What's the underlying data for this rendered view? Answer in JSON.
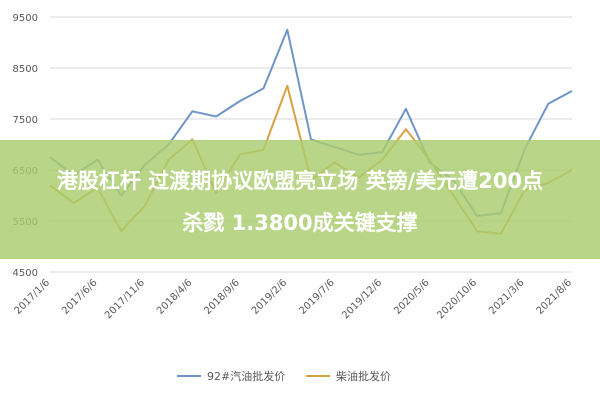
{
  "chart_data": {
    "type": "line",
    "title": "",
    "xlabel": "",
    "ylabel": "",
    "ylim": [
      4500,
      9500
    ],
    "y_ticks": [
      "9500",
      "8500",
      "7500",
      "6500",
      "5500",
      "4500"
    ],
    "x_ticks": [
      "2017/1/6",
      "2017/6/6",
      "2017/11/6",
      "2018/4/6",
      "2018/9/6",
      "2019/2/6",
      "2019/7/6",
      "2019/12/6",
      "2020/5/6",
      "2020/10/6",
      "2021/3/6",
      "2021/8/6"
    ],
    "x": [
      0,
      2.5,
      5,
      7.5,
      10,
      12.5,
      15,
      17.5,
      20,
      22.5,
      25,
      27.5,
      30,
      32.5,
      35,
      37.5,
      40,
      42.5,
      45,
      47.5,
      50,
      52.5,
      55
    ],
    "grid": "horizontal",
    "legend_position": "bottom",
    "series": [
      {
        "name": "92#汽油批发价",
        "color": "#6f95c8",
        "values": [
          6750,
          6400,
          6700,
          6000,
          6600,
          7000,
          7650,
          7550,
          7850,
          8100,
          9250,
          7100,
          6950,
          6800,
          6850,
          7700,
          6650,
          6300,
          5600,
          5650,
          6900,
          7800,
          8050
        ]
      },
      {
        "name": "柴油批发价",
        "color": "#d9a041",
        "values": [
          6200,
          5850,
          6150,
          5300,
          5800,
          6700,
          7100,
          6050,
          6800,
          6900,
          8150,
          6300,
          6650,
          6350,
          6700,
          7300,
          6700,
          6000,
          5300,
          5250,
          6100,
          6250,
          6500
        ]
      }
    ]
  },
  "overlay": {
    "line1": "港股杠杆 过渡期协议欧盟亮立场 英镑/美元遭200点",
    "line2": "杀戮 1.3800成关键支撑"
  }
}
